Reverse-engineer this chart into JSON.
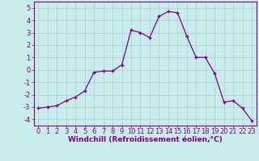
{
  "x": [
    0,
    1,
    2,
    3,
    4,
    5,
    6,
    7,
    8,
    9,
    10,
    11,
    12,
    13,
    14,
    15,
    16,
    17,
    18,
    19,
    20,
    21,
    22,
    23
  ],
  "y": [
    -3.1,
    -3.0,
    -2.9,
    -2.5,
    -2.2,
    -1.7,
    -0.2,
    -0.1,
    -0.1,
    0.4,
    3.2,
    3.0,
    2.6,
    4.3,
    4.7,
    4.6,
    2.7,
    1.0,
    1.0,
    -0.3,
    -2.6,
    -2.5,
    -3.1,
    -4.1
  ],
  "line_color": "#800080",
  "marker": "+",
  "marker_color": "#800080",
  "bg_color": "#c8ecec",
  "grid_color": "#aacccc",
  "xlabel": "Windchill (Refroidissement éolien,°C)",
  "xlabel_color": "#800080",
  "tick_color": "#800080",
  "xlim": [
    -0.5,
    23.5
  ],
  "ylim": [
    -4.5,
    5.5
  ],
  "yticks": [
    -4,
    -3,
    -2,
    -1,
    0,
    1,
    2,
    3,
    4,
    5
  ],
  "xticks": [
    0,
    1,
    2,
    3,
    4,
    5,
    6,
    7,
    8,
    9,
    10,
    11,
    12,
    13,
    14,
    15,
    16,
    17,
    18,
    19,
    20,
    21,
    22,
    23
  ],
  "spine_color": "#800080",
  "tick_fontsize": 6,
  "xlabel_fontsize": 6.5
}
